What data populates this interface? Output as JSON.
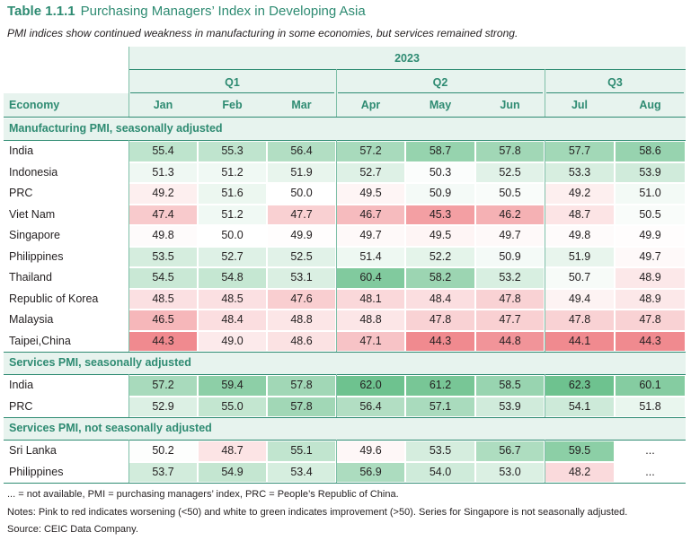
{
  "table": {
    "number": "Table 1.1.1",
    "name": "Purchasing Managers’ Index in Developing Asia",
    "subtitle": "PMI indices show continued weakness in manufacturing in some economies, but services remained strong.",
    "year": "2023",
    "quarters": [
      "Q1",
      "Q2",
      "Q3"
    ],
    "economy_header": "Economy",
    "months": [
      "Jan",
      "Feb",
      "Mar",
      "Apr",
      "May",
      "Jun",
      "Jul",
      "Aug"
    ]
  },
  "sections": [
    {
      "title": "Manufacturing PMI, seasonally adjusted",
      "rows": [
        {
          "economy": "India",
          "values": [
            "55.4",
            "55.3",
            "56.4",
            "57.2",
            "58.7",
            "57.8",
            "57.7",
            "58.6"
          ]
        },
        {
          "economy": "Indonesia",
          "values": [
            "51.3",
            "51.2",
            "51.9",
            "52.7",
            "50.3",
            "52.5",
            "53.3",
            "53.9"
          ]
        },
        {
          "economy": "PRC",
          "values": [
            "49.2",
            "51.6",
            "50.0",
            "49.5",
            "50.9",
            "50.5",
            "49.2",
            "51.0"
          ]
        },
        {
          "economy": "Viet Nam",
          "values": [
            "47.4",
            "51.2",
            "47.7",
            "46.7",
            "45.3",
            "46.2",
            "48.7",
            "50.5"
          ]
        },
        {
          "economy": "Singapore",
          "values": [
            "49.8",
            "50.0",
            "49.9",
            "49.7",
            "49.5",
            "49.7",
            "49.8",
            "49.9"
          ]
        },
        {
          "economy": "Philippines",
          "values": [
            "53.5",
            "52.7",
            "52.5",
            "51.4",
            "52.2",
            "50.9",
            "51.9",
            "49.7"
          ]
        },
        {
          "economy": "Thailand",
          "values": [
            "54.5",
            "54.8",
            "53.1",
            "60.4",
            "58.2",
            "53.2",
            "50.7",
            "48.9"
          ]
        },
        {
          "economy": "Republic of Korea",
          "values": [
            "48.5",
            "48.5",
            "47.6",
            "48.1",
            "48.4",
            "47.8",
            "49.4",
            "48.9"
          ]
        },
        {
          "economy": "Malaysia",
          "values": [
            "46.5",
            "48.4",
            "48.8",
            "48.8",
            "47.8",
            "47.7",
            "47.8",
            "47.8"
          ]
        },
        {
          "economy": "Taipei,China",
          "values": [
            "44.3",
            "49.0",
            "48.6",
            "47.1",
            "44.3",
            "44.8",
            "44.1",
            "44.3"
          ]
        }
      ]
    },
    {
      "title": "Services PMI, seasonally adjusted",
      "rows": [
        {
          "economy": "India",
          "values": [
            "57.2",
            "59.4",
            "57.8",
            "62.0",
            "61.2",
            "58.5",
            "62.3",
            "60.1"
          ]
        },
        {
          "economy": "PRC",
          "values": [
            "52.9",
            "55.0",
            "57.8",
            "56.4",
            "57.1",
            "53.9",
            "54.1",
            "51.8"
          ]
        }
      ]
    },
    {
      "title": "Services PMI, not seasonally adjusted",
      "rows": [
        {
          "economy": "Sri Lanka",
          "values": [
            "50.2",
            "48.7",
            "55.1",
            "49.6",
            "53.5",
            "56.7",
            "59.5",
            "..."
          ]
        },
        {
          "economy": "Philippines",
          "values": [
            "53.7",
            "54.9",
            "53.4",
            "56.9",
            "54.0",
            "53.0",
            "48.2",
            "..."
          ]
        }
      ]
    }
  ],
  "notes": {
    "line1": "... = not available, PMI = purchasing managers’ index, PRC = People’s Republic of China.",
    "line2": "Notes: Pink to red indicates worsening (<50) and white to green indicates improvement (>50). Series for Singapore is not seasonally adjusted.",
    "line3": "Source: CEIC Data Company."
  },
  "colors": {
    "accent": "#2e8b72",
    "header_band": "#e7f3ee",
    "green_max": "#6ec28f",
    "red_max": "#f08a8f"
  }
}
